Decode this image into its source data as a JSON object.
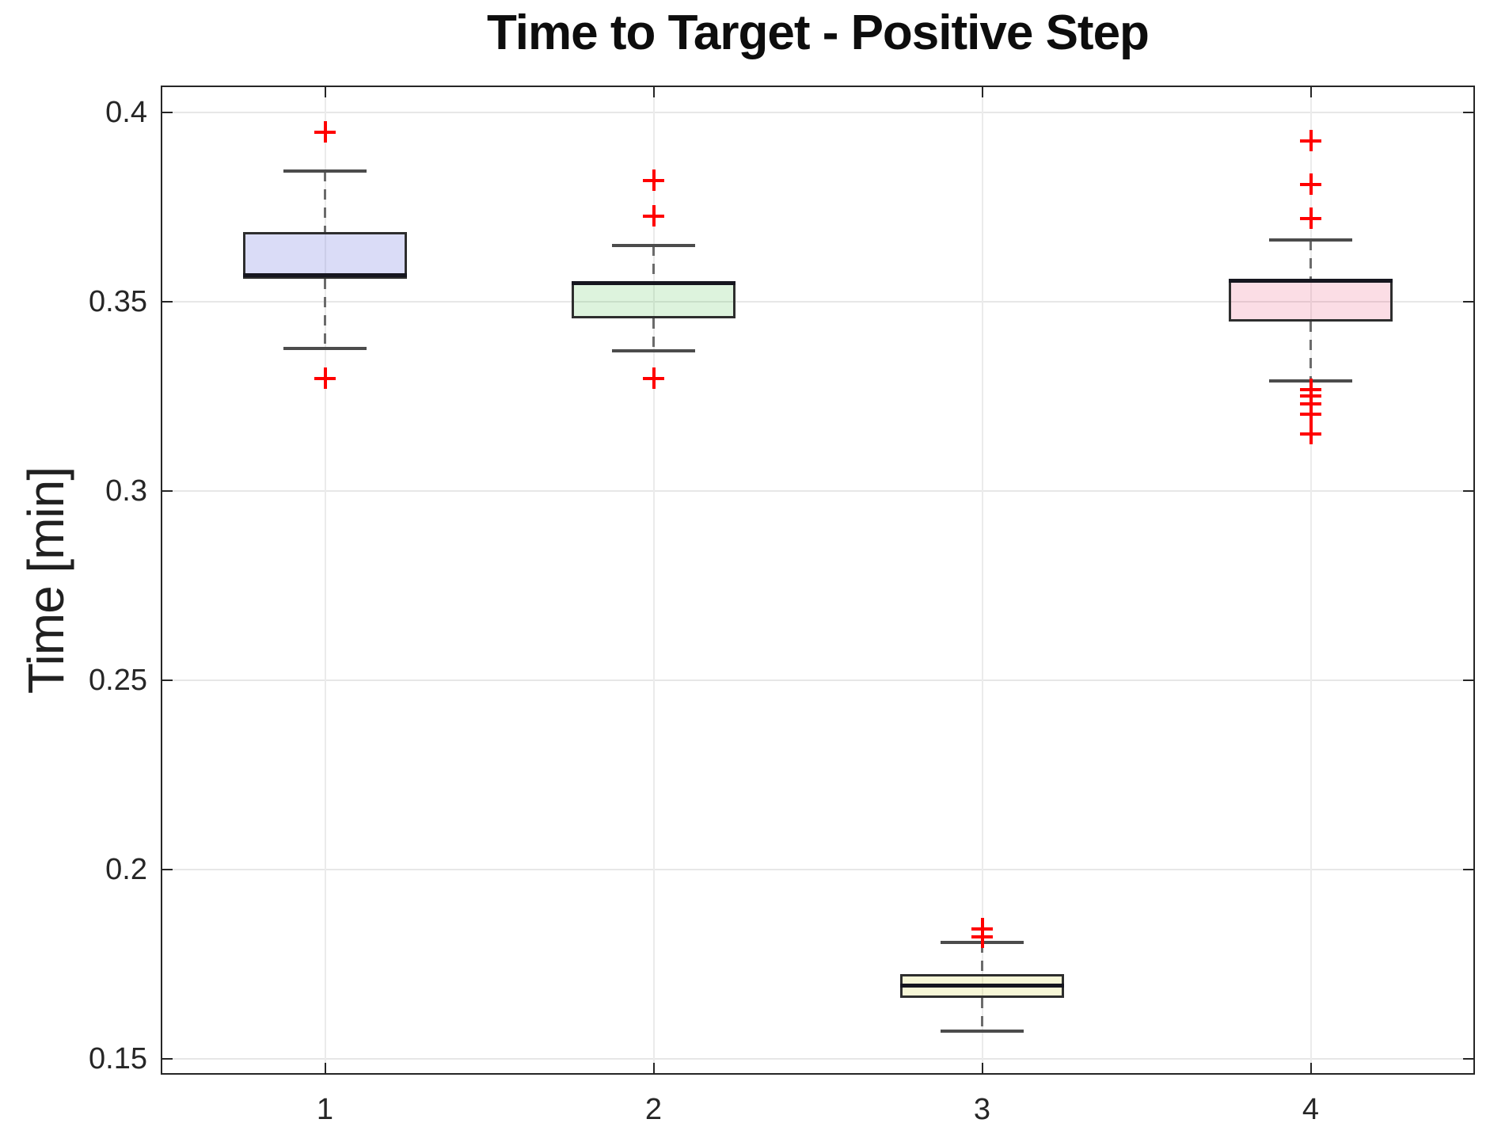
{
  "chart_data": {
    "type": "boxplot",
    "title": "Time to Target - Positive Step",
    "xlabel": "",
    "ylabel": "Time [min]",
    "xlim": [
      0.5,
      4.5
    ],
    "ylim": [
      0.1458,
      0.4071
    ],
    "grid": true,
    "legend": null,
    "yticks": [
      0.4,
      0.35,
      0.3,
      0.25,
      0.2,
      0.15
    ],
    "ytick_labels": [
      "0.4",
      "0.35",
      "0.3",
      "0.25",
      "0.2",
      "0.15"
    ],
    "xticks": [
      1,
      2,
      3,
      4
    ],
    "xtick_labels": [
      "1",
      "2",
      "3",
      "4"
    ],
    "box_width": 0.5,
    "cap_width": 0.255,
    "colors": {
      "axis": "#262626",
      "grid": "#e7e7e7",
      "box_edge": "#2e2e2e",
      "median": "#16161f",
      "whisker": "#6b6b6b",
      "cap": "#4c4c4c",
      "outlier": "#ff0000",
      "fills_hex": [
        "#dadcf6",
        "#ddf3dd",
        "#f7f7d7",
        "#fbdee5"
      ]
    },
    "series": [
      {
        "x": 1,
        "label": "1",
        "fill": "rgba(100,110,220,0.24)",
        "q1": 0.3561,
        "median": 0.3569,
        "q3": 0.3684,
        "whisker_low": 0.3377,
        "whisker_high": 0.3845,
        "outliers": [
          0.3948,
          0.3297
        ]
      },
      {
        "x": 2,
        "label": "2",
        "fill": "rgba(68,187,68,0.18)",
        "q1": 0.3456,
        "median": 0.3548,
        "q3": 0.3555,
        "whisker_low": 0.337,
        "whisker_high": 0.3649,
        "outliers": [
          0.382,
          0.3726,
          0.3297
        ]
      },
      {
        "x": 3,
        "label": "3",
        "fill": "rgba(210,210,20,0.17)",
        "q1": 0.1661,
        "median": 0.1693,
        "q3": 0.1724,
        "whisker_low": 0.1573,
        "whisker_high": 0.1808,
        "outliers": [
          0.1843,
          0.1822
        ]
      },
      {
        "x": 4,
        "label": "4",
        "fill": "rgba(230,40,90,0.155)",
        "q1": 0.3448,
        "median": 0.3555,
        "q3": 0.356,
        "whisker_low": 0.3291,
        "whisker_high": 0.3663,
        "outliers": [
          0.3925,
          0.381,
          0.372,
          0.3268,
          0.3251,
          0.323,
          0.3203,
          0.3151
        ]
      }
    ]
  }
}
